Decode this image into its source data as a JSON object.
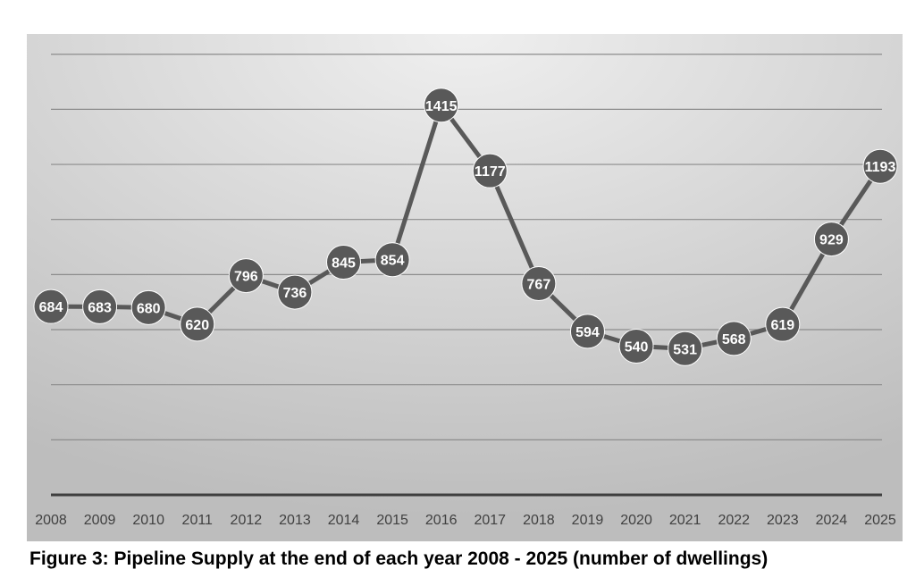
{
  "caption": "Figure 3: Pipeline Supply at the end of each year 2008 - 2025 (number of dwellings)",
  "colors": {
    "line": "#595959",
    "marker": "#595959",
    "label_text": "#ffffff",
    "gridline": "#8c8c8c",
    "axis": "#3f3f3f",
    "background_light": "#eeeeee",
    "background_dark": "#bfbfbf"
  },
  "chart_data": {
    "type": "line",
    "title": "",
    "xlabel": "",
    "ylabel": "",
    "categories": [
      "2008",
      "2009",
      "2010",
      "2011",
      "2012",
      "2013",
      "2014",
      "2015",
      "2016",
      "2017",
      "2018",
      "2019",
      "2020",
      "2021",
      "2022",
      "2023",
      "2024",
      "2025"
    ],
    "series": [
      {
        "values": [
          684,
          683,
          680,
          620,
          796,
          736,
          845,
          854,
          1415,
          1177,
          767,
          594,
          540,
          531,
          568,
          619,
          929,
          1193
        ]
      }
    ],
    "ylim": [
      0,
      1600
    ],
    "y_gridlines": [
      200,
      400,
      600,
      800,
      1000,
      1200,
      1400,
      1600
    ],
    "y_tick_labels_shown": false,
    "data_labels": true,
    "grid": true,
    "legend": "none"
  }
}
